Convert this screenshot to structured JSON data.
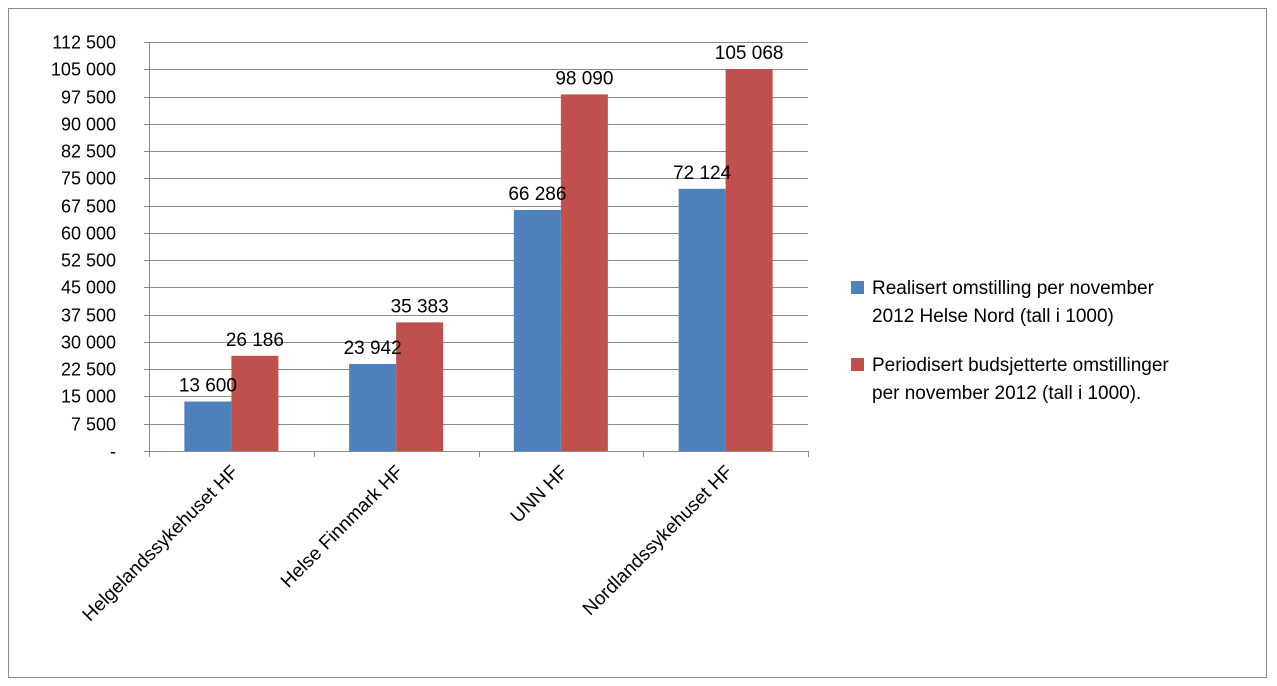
{
  "chart_data": {
    "type": "bar",
    "categories": [
      "Helgelandssykehuset HF",
      "Helse Finnmark HF",
      "UNN HF",
      "Nordlandssykehuset HF"
    ],
    "series": [
      {
        "name": "Realisert omstilling  per november 2012 Helse Nord (tall i 1000)",
        "legend_lines": [
          "Realisert omstilling  per november",
          "2012 Helse Nord (tall i 1000)"
        ],
        "color": "#4F81BD",
        "values": [
          13600,
          23942,
          66286,
          72124
        ],
        "labels": [
          "13 600",
          "23 942",
          "66 286",
          "72 124"
        ]
      },
      {
        "name": "Periodisert budsjetterte omstillinger per november 2012 (tall i 1000).",
        "legend_lines": [
          "Periodisert budsjetterte omstillinger",
          "per november 2012 (tall i 1000)."
        ],
        "color": "#C0504D",
        "values": [
          26186,
          35383,
          98090,
          105068
        ],
        "labels": [
          "26 186",
          "35 383",
          "98 090",
          "105 068"
        ]
      }
    ],
    "ylim": [
      0,
      112500
    ],
    "yticks": [
      0,
      7500,
      15000,
      22500,
      30000,
      37500,
      45000,
      52500,
      60000,
      67500,
      75000,
      82500,
      90000,
      97500,
      105000,
      112500
    ],
    "ytick_labels": [
      "-",
      "7 500",
      "15 000",
      "22 500",
      "30 000",
      "37 500",
      "45 000",
      "52 500",
      "60 000",
      "67 500",
      "75 000",
      "82 500",
      "90 000",
      "97 500",
      "105 000",
      "112 500"
    ],
    "grid": true,
    "legend_position": "right",
    "title": "",
    "xlabel": "",
    "ylabel": ""
  }
}
